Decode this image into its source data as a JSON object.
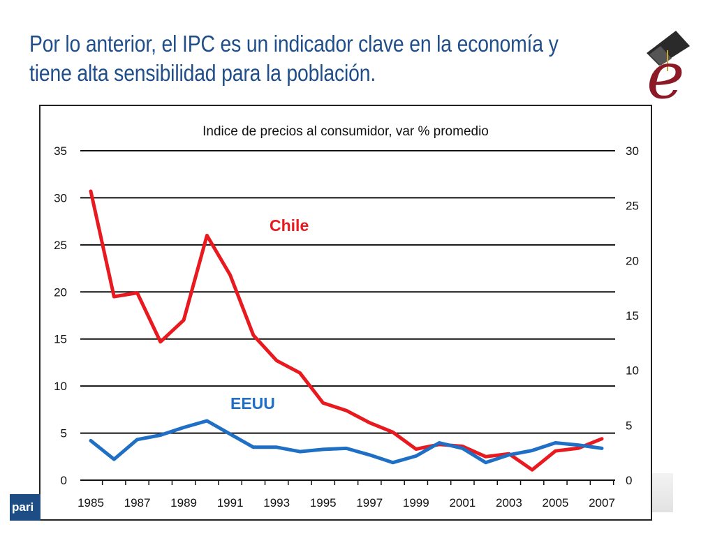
{
  "slide": {
    "title_line1": "Por lo anterior, el IPC es un indicador clave en la economía y",
    "title_line2": "tiene alta sensibilidad para la población."
  },
  "footer": {
    "logo_text": "pari"
  },
  "logo": {
    "letter": "e",
    "icon": "graduation-cap-icon"
  },
  "colors": {
    "title": "#1f4e8a",
    "chile": "#e8191f",
    "eeuu": "#1f6fc5",
    "logo": "#8b1a26"
  },
  "chart_data": {
    "type": "line",
    "title": "Indice de precios al consumidor, var % promedio",
    "x": [
      1985,
      1986,
      1987,
      1988,
      1989,
      1990,
      1991,
      1992,
      1993,
      1994,
      1995,
      1996,
      1997,
      1998,
      1999,
      2000,
      2001,
      2002,
      2003,
      2004,
      2005,
      2006,
      2007
    ],
    "x_tick_labels": [
      "1985",
      "1987",
      "1989",
      "1991",
      "1993",
      "1995",
      "1997",
      "1999",
      "2001",
      "2003",
      "2005",
      "2007"
    ],
    "left_axis": {
      "ylim": [
        0,
        35
      ],
      "ticks": [
        "0",
        "5",
        "10",
        "15",
        "20",
        "25",
        "30",
        "35"
      ]
    },
    "right_axis": {
      "ylim": [
        0,
        30
      ],
      "ticks": [
        "0",
        "5",
        "10",
        "15",
        "20",
        "25",
        "30"
      ]
    },
    "grid": true,
    "series": [
      {
        "name": "Chile",
        "axis": "left",
        "color": "#e8191f",
        "values": [
          30.7,
          19.5,
          19.9,
          14.7,
          17.0,
          26.0,
          21.8,
          15.4,
          12.7,
          11.4,
          8.2,
          7.4,
          6.1,
          5.1,
          3.3,
          3.8,
          3.6,
          2.5,
          2.8,
          1.1,
          3.1,
          3.4,
          4.4
        ]
      },
      {
        "name": "EEUU",
        "axis": "right",
        "color": "#1f6fc5",
        "values": [
          3.6,
          1.9,
          3.7,
          4.1,
          4.8,
          5.4,
          4.2,
          3.0,
          3.0,
          2.6,
          2.8,
          2.9,
          2.3,
          1.6,
          2.2,
          3.4,
          2.9,
          1.6,
          2.3,
          2.7,
          3.4,
          3.2,
          2.9
        ]
      }
    ]
  }
}
